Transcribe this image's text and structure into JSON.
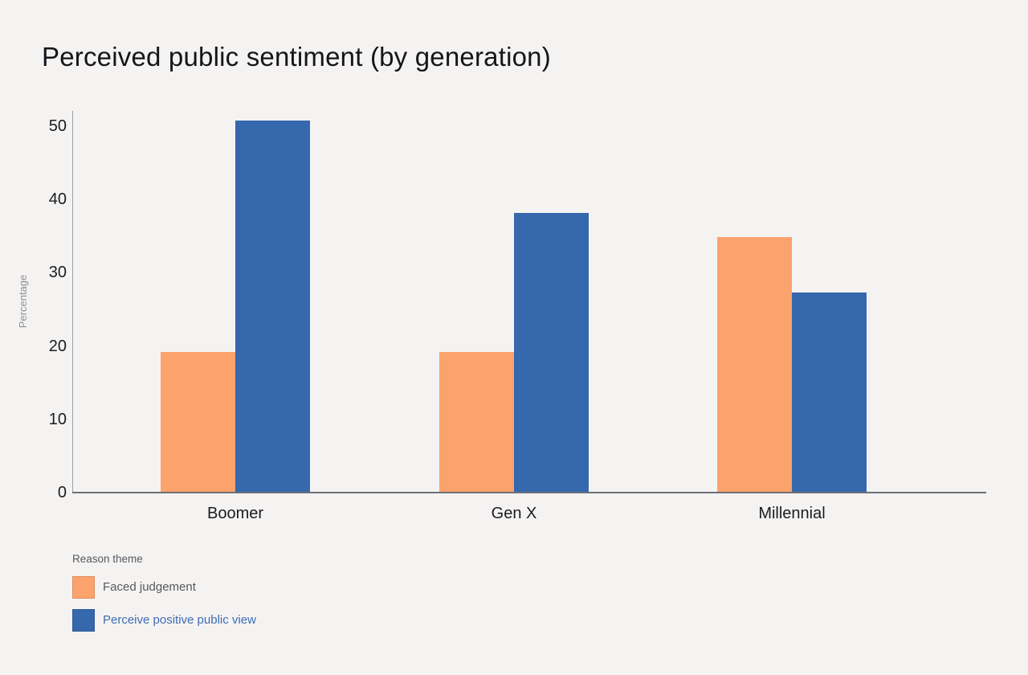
{
  "chart_data": {
    "type": "bar",
    "title": "Perceived public sentiment (by generation)",
    "xlabel": "",
    "ylabel": "Percentage",
    "categories": [
      "Boomer",
      "Gen X",
      "Millennial"
    ],
    "series": [
      {
        "name": "Faced judgement",
        "color": "#fca26d",
        "label_color": "#55585e",
        "values": [
          19.2,
          19.2,
          34.9
        ]
      },
      {
        "name": "Perceive positive public view",
        "color": "#3568ad",
        "label_color": "#3c6cb3",
        "values": [
          50.8,
          38.2,
          27.3
        ]
      }
    ],
    "yticks": [
      0,
      10,
      20,
      30,
      40,
      50
    ],
    "ylim": [
      0,
      52
    ],
    "grid": false,
    "legend_title": "Reason theme",
    "legend_position": "bottom-left"
  }
}
